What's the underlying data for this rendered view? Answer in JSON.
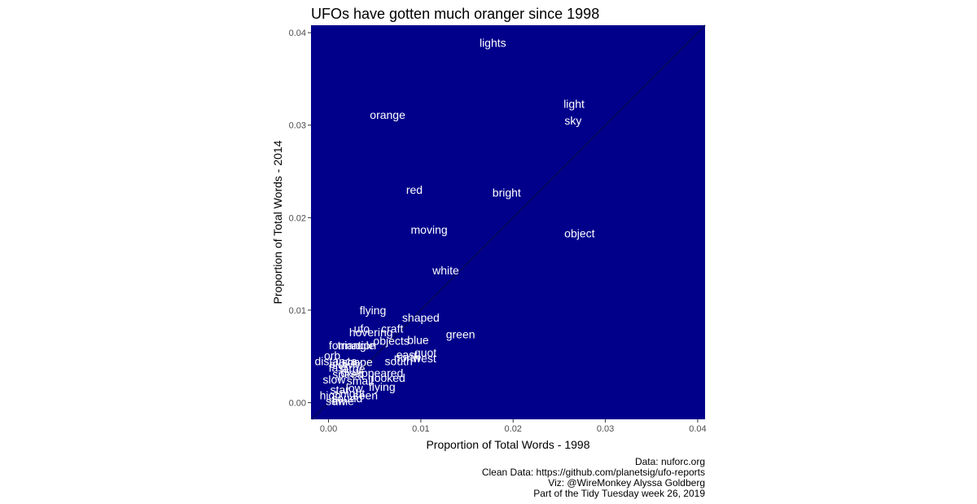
{
  "chart_data": {
    "type": "scatter",
    "title": "UFOs have gotten much oranger since 1998",
    "xlabel": "Proportion of Total Words - 1998",
    "ylabel": "Proportion of Total Words - 2014",
    "xlim": [
      -0.0019,
      0.0408
    ],
    "ylim": [
      -0.0018,
      0.0408
    ],
    "x_ticks": [
      0,
      0.01,
      0.02,
      0.03,
      0.04
    ],
    "x_tick_labels": [
      "0.00",
      "0.01",
      "0.02",
      "0.03",
      "0.04"
    ],
    "y_ticks": [
      0,
      0.01,
      0.02,
      0.03,
      0.04
    ],
    "y_tick_labels": [
      "0.00",
      "0.01",
      "0.02",
      "0.03",
      "0.04"
    ],
    "reference_line": "y = x",
    "panel_color": "#00008b",
    "label_color": "#ffffff",
    "line_color": "#0a0a5a",
    "points": [
      {
        "label": "lights",
        "x": 0.0178,
        "y": 0.0389
      },
      {
        "label": "orange",
        "x": 0.0064,
        "y": 0.0311
      },
      {
        "label": "light",
        "x": 0.0266,
        "y": 0.0323
      },
      {
        "label": "sky",
        "x": 0.0265,
        "y": 0.0305
      },
      {
        "label": "red",
        "x": 0.0093,
        "y": 0.023
      },
      {
        "label": "bright",
        "x": 0.0193,
        "y": 0.0227
      },
      {
        "label": "moving",
        "x": 0.0109,
        "y": 0.0187
      },
      {
        "label": "object",
        "x": 0.0272,
        "y": 0.0183
      },
      {
        "label": "white",
        "x": 0.0127,
        "y": 0.0143
      },
      {
        "label": "flying",
        "x": 0.0048,
        "y": 0.01
      },
      {
        "label": "shaped",
        "x": 0.01,
        "y": 0.0092
      },
      {
        "label": "craft",
        "x": 0.0069,
        "y": 0.008
      },
      {
        "label": "ufo",
        "x": 0.0036,
        "y": 0.008
      },
      {
        "label": "green",
        "x": 0.0143,
        "y": 0.0074
      },
      {
        "label": "hovering",
        "x": 0.0046,
        "y": 0.0076
      },
      {
        "label": "blue",
        "x": 0.0097,
        "y": 0.0068
      },
      {
        "label": "objects",
        "x": 0.0068,
        "y": 0.0067
      },
      {
        "label": "formation",
        "x": 0.0026,
        "y": 0.0062
      },
      {
        "label": "triangle",
        "x": 0.003,
        "y": 0.0062
      },
      {
        "label": "quot",
        "x": 0.0105,
        "y": 0.0054
      },
      {
        "label": "west",
        "x": 0.0104,
        "y": 0.0048
      },
      {
        "label": "north",
        "x": 0.0085,
        "y": 0.0049
      },
      {
        "label": "east",
        "x": 0.0085,
        "y": 0.0052
      },
      {
        "label": "south",
        "x": 0.0076,
        "y": 0.0045
      },
      {
        "label": "orb",
        "x": 0.0004,
        "y": 0.0051
      },
      {
        "label": "disappeared",
        "x": 0.0047,
        "y": 0.0032
      },
      {
        "label": "looked",
        "x": 0.0065,
        "y": 0.0027
      },
      {
        "label": "flying",
        "x": 0.0058,
        "y": 0.0017
      },
      {
        "label": "seen",
        "x": 0.004,
        "y": 0.0008
      },
      {
        "label": "distance",
        "x": 0.0008,
        "y": 0.0045
      },
      {
        "label": "fast",
        "x": 0.001,
        "y": 0.0038
      },
      {
        "label": "slowly",
        "x": 0.0018,
        "y": 0.0042
      },
      {
        "label": "slow",
        "x": 0.0006,
        "y": 0.0025
      },
      {
        "label": "speed",
        "x": 0.0021,
        "y": 0.0031
      },
      {
        "label": "shape",
        "x": 0.0031,
        "y": 0.0044
      },
      {
        "label": "large",
        "x": 0.0026,
        "y": 0.0037
      },
      {
        "label": "small",
        "x": 0.0034,
        "y": 0.0024
      },
      {
        "label": "star",
        "x": 0.0012,
        "y": 0.0014
      },
      {
        "label": "sound",
        "x": 0.002,
        "y": 0.0005
      },
      {
        "label": "time",
        "x": 0.0016,
        "y": 0.0002
      },
      {
        "label": "night",
        "x": 0.0026,
        "y": 0.001
      },
      {
        "label": "saw",
        "x": 0.0008,
        "y": 0.0002
      },
      {
        "label": "high",
        "x": 0.0002,
        "y": 0.0008
      },
      {
        "label": "low",
        "x": 0.0028,
        "y": 0.0016
      }
    ]
  },
  "caption": [
    "Data: nuforc.org",
    "Clean Data: https://github.com/planetsig/ufo-reports",
    "Viz: @WireMonkey Alyssa Goldberg",
    "Part of the Tidy Tuesday week 26, 2019"
  ]
}
